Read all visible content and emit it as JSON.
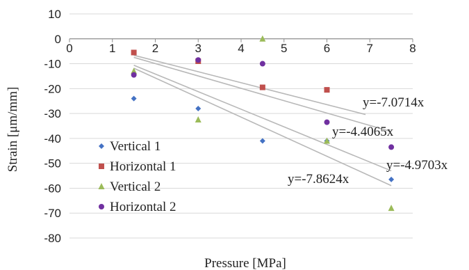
{
  "chart_data": {
    "type": "scatter",
    "title": "",
    "xlabel": "Pressure [MPa]",
    "ylabel": "Strain [μm/mm]",
    "xlim": [
      0,
      8
    ],
    "ylim": [
      -80,
      10
    ],
    "xticks": [
      0,
      1,
      2,
      3,
      4,
      5,
      6,
      7,
      8
    ],
    "yticks": [
      10,
      0,
      -10,
      -20,
      -30,
      -40,
      -50,
      -60,
      -70,
      -80
    ],
    "grid": true,
    "legend_position": "left",
    "series": [
      {
        "name": "Vertical 1",
        "color": "#4472C4",
        "marker": "diamond",
        "x": [
          1.5,
          3,
          4.5,
          6,
          7.5
        ],
        "y": [
          -24,
          -28,
          -41,
          -41,
          -56.5
        ]
      },
      {
        "name": "Horizontal 1",
        "color": "#C0504D",
        "marker": "square",
        "x": [
          1.5,
          3,
          4.5,
          6
        ],
        "y": [
          -5.5,
          -9,
          -19.5,
          -20.5
        ]
      },
      {
        "name": "Vertical 2",
        "color": "#9BBB59",
        "marker": "triangle",
        "x": [
          1.5,
          3,
          4.5,
          6,
          7.5
        ],
        "y": [
          -13,
          -32.5,
          0,
          -41,
          -68
        ]
      },
      {
        "name": "Horizontal 2",
        "color": "#7030A0",
        "marker": "circle",
        "x": [
          1.5,
          3,
          4.5,
          6,
          7.5
        ],
        "y": [
          -14.5,
          -8.5,
          -10,
          -33.5,
          -43.5
        ]
      }
    ],
    "trendlines": [
      {
        "label": "y=-7.0714x",
        "slope": -7.0714,
        "x_start": 1.5,
        "x_end": 7.5
      },
      {
        "label": "y=-4.4065x",
        "slope": -4.4065,
        "x_start": 1.5,
        "x_end": 6.9
      },
      {
        "label": "y=-4.9703x",
        "slope": -4.9703,
        "x_start": 1.5,
        "x_end": 7.5
      },
      {
        "label": "y=-7.8624x",
        "slope": -7.8624,
        "x_start": 1.5,
        "x_end": 7.5
      }
    ]
  }
}
